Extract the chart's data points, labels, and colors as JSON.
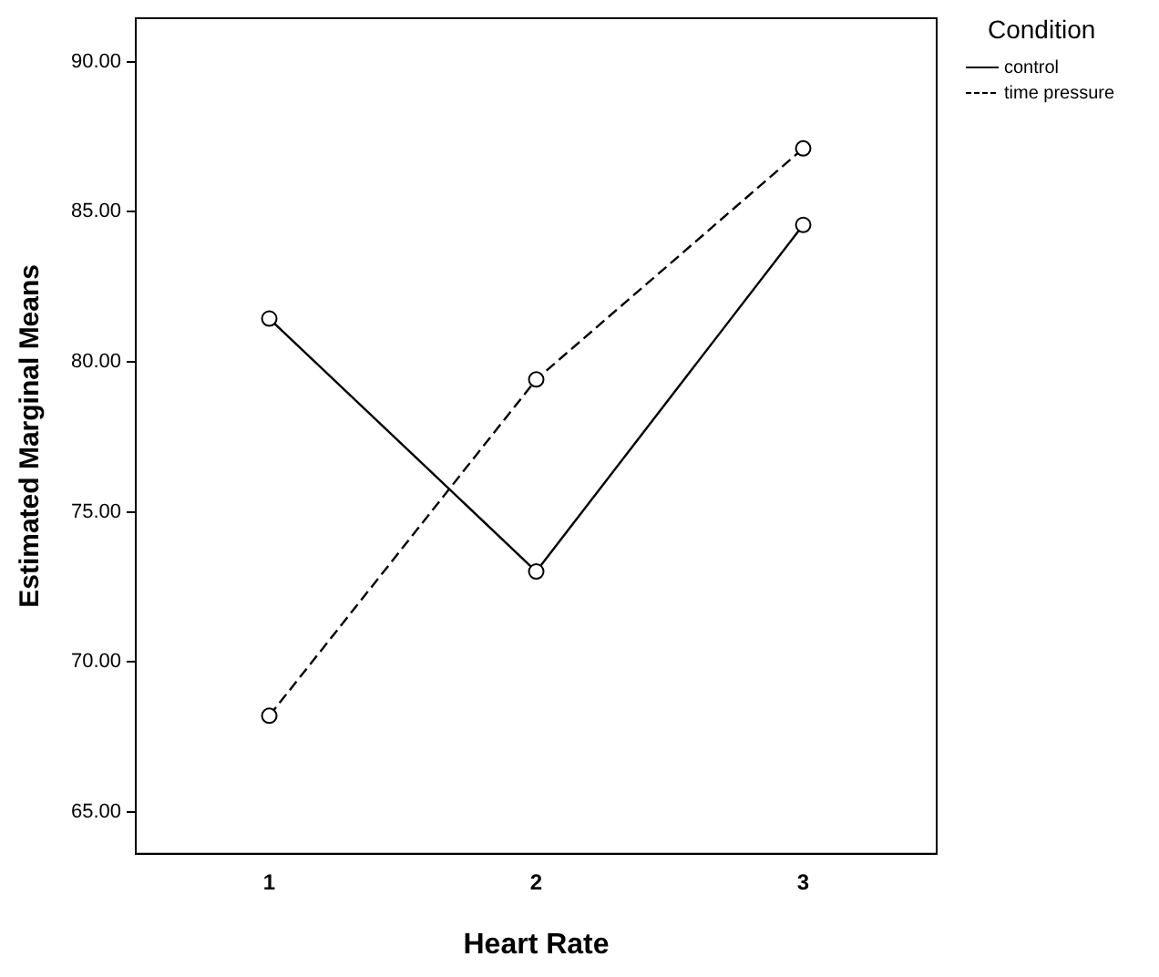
{
  "chart_data": {
    "type": "line",
    "xlabel": "Heart Rate",
    "ylabel": "Estimated Marginal Means",
    "legend_title": "Condition",
    "categories": [
      "1",
      "2",
      "3"
    ],
    "series": [
      {
        "name": "control",
        "color": "#000000",
        "values": [
          81.44,
          73.01,
          84.56
        ],
        "line_style": "solid"
      },
      {
        "name": "time pressure",
        "color": "#000000",
        "values": [
          68.2,
          79.41,
          87.11
        ],
        "line_style": "dashed"
      }
    ],
    "ylim": [
      63.6,
      91.45
    ],
    "yticks": [
      {
        "value": 65,
        "label": "65.00"
      },
      {
        "value": 70,
        "label": "70.00"
      },
      {
        "value": 75,
        "label": "75.00"
      },
      {
        "value": 80,
        "label": "80.00"
      },
      {
        "value": 85,
        "label": "85.00"
      },
      {
        "value": 90,
        "label": "90.00"
      }
    ],
    "grid": false,
    "legend": "top right",
    "marker": "circle"
  }
}
